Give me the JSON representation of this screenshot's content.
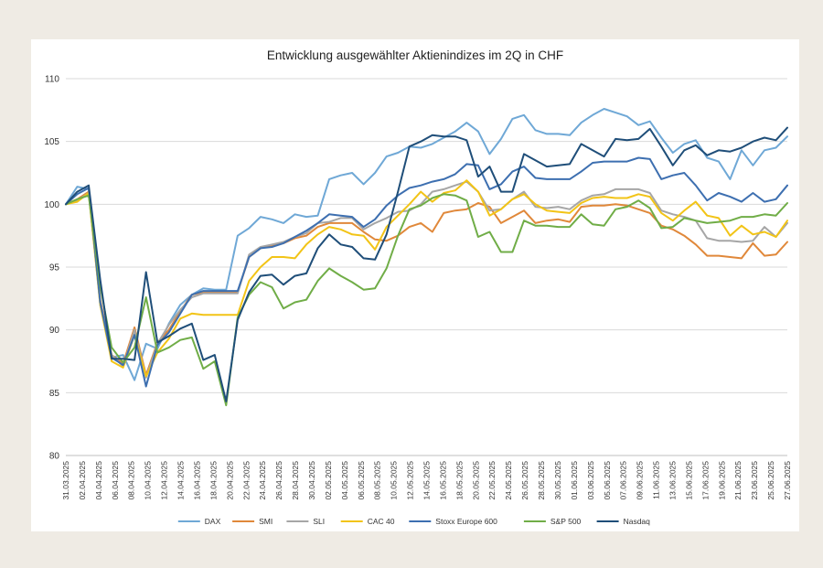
{
  "chart_data": {
    "type": "line",
    "title": "Entwicklung ausgewählter Aktienindizes im 2Q in CHF",
    "xlabel": "",
    "ylabel": "",
    "ylim": [
      80,
      110
    ],
    "yticks": [
      80,
      85,
      90,
      95,
      100,
      105,
      110
    ],
    "x": [
      "31.03.2025",
      "01.04.2025",
      "02.04.2025",
      "03.04.2025",
      "04.04.2025",
      "07.04.2025",
      "08.04.2025",
      "09.04.2025",
      "10.04.2025",
      "11.04.2025",
      "14.04.2025",
      "15.04.2025",
      "16.04.2025",
      "17.04.2025",
      "21.04.2025",
      "22.04.2025",
      "23.04.2025",
      "24.04.2025",
      "25.04.2025",
      "28.04.2025",
      "29.04.2025",
      "30.04.2025",
      "01.05.2025",
      "02.05.2025",
      "05.05.2025",
      "06.05.2025",
      "07.05.2025",
      "08.05.2025",
      "09.05.2025",
      "12.05.2025",
      "13.05.2025",
      "14.05.2025",
      "15.05.2025",
      "16.05.2025",
      "19.05.2025",
      "20.05.2025",
      "21.05.2025",
      "22.05.2025",
      "23.05.2025",
      "26.05.2025",
      "27.05.2025",
      "28.05.2025",
      "29.05.2025",
      "30.05.2025",
      "02.06.2025",
      "03.06.2025",
      "04.06.2025",
      "05.06.2025",
      "06.06.2025",
      "09.06.2025",
      "10.06.2025",
      "11.06.2025",
      "12.06.2025",
      "13.06.2025",
      "16.06.2025",
      "17.06.2025",
      "18.06.2025",
      "19.06.2025",
      "20.06.2025",
      "23.06.2025",
      "24.06.2025",
      "25.06.2025",
      "26.06.2025",
      "27.06.2025"
    ],
    "xticklabels": [
      "31.03.2025",
      "02.04.2025",
      "04.04.2025",
      "06.04.2025",
      "08.04.2025",
      "10.04.2025",
      "12.04.2025",
      "14.04.2025",
      "16.04.2025",
      "18.04.2025",
      "20.04.2025",
      "22.04.2025",
      "24.04.2025",
      "26.04.2025",
      "28.04.2025",
      "30.04.2025",
      "02.05.2025",
      "04.05.2025",
      "06.05.2025",
      "08.05.2025",
      "10.05.2025",
      "12.05.2025",
      "14.05.2025",
      "16.05.2025",
      "18.05.2025",
      "20.05.2025",
      "22.05.2025",
      "24.05.2025",
      "26.05.2025",
      "28.05.2025",
      "30.05.2025",
      "01.06.2025",
      "03.06.2025",
      "05.06.2025",
      "07.06.2025",
      "09.06.2025",
      "11.06.2025",
      "13.06.2025",
      "15.06.2025",
      "17.06.2025",
      "19.06.2025",
      "21.06.2025",
      "23.06.2025",
      "25.06.2025",
      "27.06.2025"
    ],
    "grid": true,
    "legend_position": "bottom",
    "series": [
      {
        "name": "DAX",
        "color": "#6fa8d6",
        "values": [
          100,
          101.4,
          101.2,
          92,
          87.8,
          88,
          86,
          88.9,
          88.5,
          90.5,
          92,
          92.8,
          93.3,
          93.2,
          93.2,
          97.5,
          98.1,
          99,
          98.8,
          98.5,
          99.2,
          99,
          99.1,
          102,
          102.3,
          102.5,
          101.6,
          102.5,
          103.8,
          104.1,
          104.6,
          104.5,
          104.8,
          105.3,
          105.8,
          106.5,
          105.8,
          104,
          105.2,
          106.8,
          107.1,
          105.9,
          105.6,
          105.6,
          105.5,
          106.5,
          107.1,
          107.6,
          107.3,
          107,
          106.3,
          106.6,
          105.3,
          104.1,
          104.8,
          105.1,
          103.7,
          103.4,
          102,
          104.3,
          103.1,
          104.3,
          104.5,
          105.4
        ]
      },
      {
        "name": "SMI",
        "color": "#e0883a",
        "values": [
          100,
          100.4,
          101,
          92.4,
          88,
          87.3,
          90.2,
          86.4,
          89,
          90,
          91.5,
          92.8,
          93,
          93,
          93,
          93,
          95.8,
          96.5,
          96.7,
          96.9,
          97.3,
          97.5,
          98.2,
          98.5,
          98.5,
          98.5,
          97.8,
          97.2,
          97.1,
          97.5,
          98.2,
          98.5,
          97.8,
          99.3,
          99.5,
          99.6,
          100.1,
          99.8,
          98.5,
          99,
          99.5,
          98.5,
          98.7,
          98.8,
          98.6,
          99.8,
          99.9,
          99.9,
          100,
          99.9,
          99.6,
          99.3,
          98.3,
          98,
          97.5,
          96.8,
          95.9,
          95.9,
          95.8,
          95.7,
          96.9,
          95.9,
          96,
          97
        ]
      },
      {
        "name": "SLI",
        "color": "#a6a6a6",
        "values": [
          100,
          100.3,
          100.9,
          92.2,
          88,
          87.1,
          90,
          86.2,
          88.9,
          90.4,
          91.6,
          92.6,
          92.9,
          92.9,
          92.9,
          92.9,
          96,
          96.6,
          96.8,
          97,
          97.4,
          97.7,
          98.5,
          98.6,
          98.9,
          98.9,
          98,
          98.5,
          98.9,
          99.4,
          99.5,
          100,
          101,
          101.2,
          101.5,
          101.8,
          101,
          99.5,
          99.6,
          100.4,
          101,
          99.8,
          99.7,
          99.8,
          99.6,
          100.3,
          100.7,
          100.8,
          101.2,
          101.2,
          101.2,
          100.9,
          99.5,
          99.2,
          99,
          98.7,
          97.3,
          97.1,
          97.1,
          97,
          97.1,
          98.2,
          97.4,
          98.5
        ]
      },
      {
        "name": "CAC 40",
        "color": "#f2c417",
        "values": [
          100,
          100.2,
          100.9,
          92,
          87.5,
          87,
          89.6,
          86.3,
          88.2,
          89.3,
          90.9,
          91.3,
          91.2,
          91.2,
          91.2,
          91.2,
          93.9,
          95,
          95.8,
          95.8,
          95.7,
          96.8,
          97.6,
          98.2,
          98,
          97.6,
          97.5,
          96.4,
          98.2,
          99.1,
          100,
          101,
          100.2,
          100.9,
          101.1,
          101.9,
          101,
          99.1,
          99.6,
          100.4,
          100.8,
          100,
          99.5,
          99.4,
          99.3,
          100.1,
          100.5,
          100.6,
          100.5,
          100.5,
          100.8,
          100.6,
          99.3,
          98.7,
          99.5,
          100.2,
          99.1,
          98.9,
          97.5,
          98.3,
          97.6,
          97.8,
          97.4,
          98.7
        ]
      },
      {
        "name": "Stoxx Europe 600",
        "color": "#3d6fb0",
        "values": [
          100,
          100.8,
          101.3,
          92.2,
          87.8,
          87.2,
          89.6,
          85.5,
          88.8,
          89.8,
          91.3,
          92.8,
          93.1,
          93.1,
          93.1,
          93.1,
          95.8,
          96.5,
          96.6,
          96.9,
          97.4,
          97.9,
          98.5,
          99.2,
          99.1,
          99,
          98.2,
          98.8,
          99.9,
          100.7,
          101.3,
          101.5,
          101.8,
          102,
          102.4,
          103.2,
          103.1,
          101.2,
          101.6,
          102.6,
          103,
          102.1,
          102,
          102,
          102,
          102.6,
          103.3,
          103.4,
          103.4,
          103.4,
          103.7,
          103.6,
          102,
          102.3,
          102.5,
          101.5,
          100.3,
          100.9,
          100.6,
          100.2,
          100.9,
          100.2,
          100.4,
          101.5
        ]
      },
      {
        "name": "S&P 500",
        "color": "#70ad47",
        "values": [
          100,
          100.4,
          100.7,
          93.5,
          88.6,
          87.4,
          88.6,
          92.6,
          88.2,
          88.6,
          89.2,
          89.4,
          86.9,
          87.5,
          84,
          91,
          92.8,
          93.8,
          93.4,
          91.7,
          92.2,
          92.4,
          93.9,
          94.9,
          94.3,
          93.8,
          93.2,
          93.3,
          94.9,
          97.5,
          99.6,
          99.9,
          100.5,
          100.8,
          100.7,
          100.3,
          97.4,
          97.8,
          96.2,
          96.2,
          98.7,
          98.3,
          98.3,
          98.2,
          98.2,
          99.2,
          98.4,
          98.3,
          99.6,
          99.8,
          100.3,
          99.7,
          98.1,
          98.2,
          98.9,
          98.7,
          98.5,
          98.6,
          98.7,
          99,
          99,
          99.2,
          99.1,
          100.1
        ]
      },
      {
        "name": "Nasdaq",
        "color": "#1f4e79",
        "values": [
          100,
          101,
          101.5,
          94,
          87.7,
          87.7,
          87.6,
          94.6,
          89,
          89.5,
          90.1,
          90.5,
          87.6,
          88,
          84.3,
          90.8,
          93,
          94.3,
          94.4,
          93.6,
          94.3,
          94.5,
          96.5,
          97.6,
          96.8,
          96.6,
          95.7,
          95.6,
          97.6,
          101,
          104.6,
          105,
          105.5,
          105.4,
          105.4,
          105.1,
          102.2,
          103,
          101,
          101,
          104,
          103.5,
          103,
          103.1,
          103.2,
          104.8,
          104.3,
          103.8,
          105.2,
          105.1,
          105.2,
          106,
          104.6,
          103.1,
          104.3,
          104.7,
          103.9,
          104.3,
          104.2,
          104.5,
          105,
          105.3,
          105.1,
          106.1
        ]
      }
    ]
  }
}
